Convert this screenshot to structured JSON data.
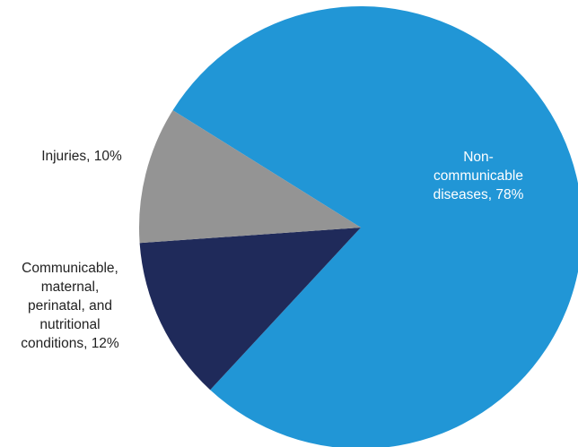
{
  "chart_data": {
    "type": "pie",
    "title": "",
    "slices": [
      {
        "label_lines": [
          "Non-",
          "communicable",
          "diseases, 78%"
        ],
        "value": 78,
        "color": "#2196d6",
        "label_color": "#ffffff",
        "label_position": "inside"
      },
      {
        "label_lines": [
          "Communicable,",
          "maternal,",
          "perinatal, and",
          "nutritional",
          "conditions, 12%"
        ],
        "value": 12,
        "color": "#1f2a5a",
        "label_color": "#222222",
        "label_position": "outside-left"
      },
      {
        "label_lines": [
          "Injuries, 10%"
        ],
        "value": 10,
        "color": "#949494",
        "label_color": "#222222",
        "label_position": "outside-left"
      }
    ]
  }
}
